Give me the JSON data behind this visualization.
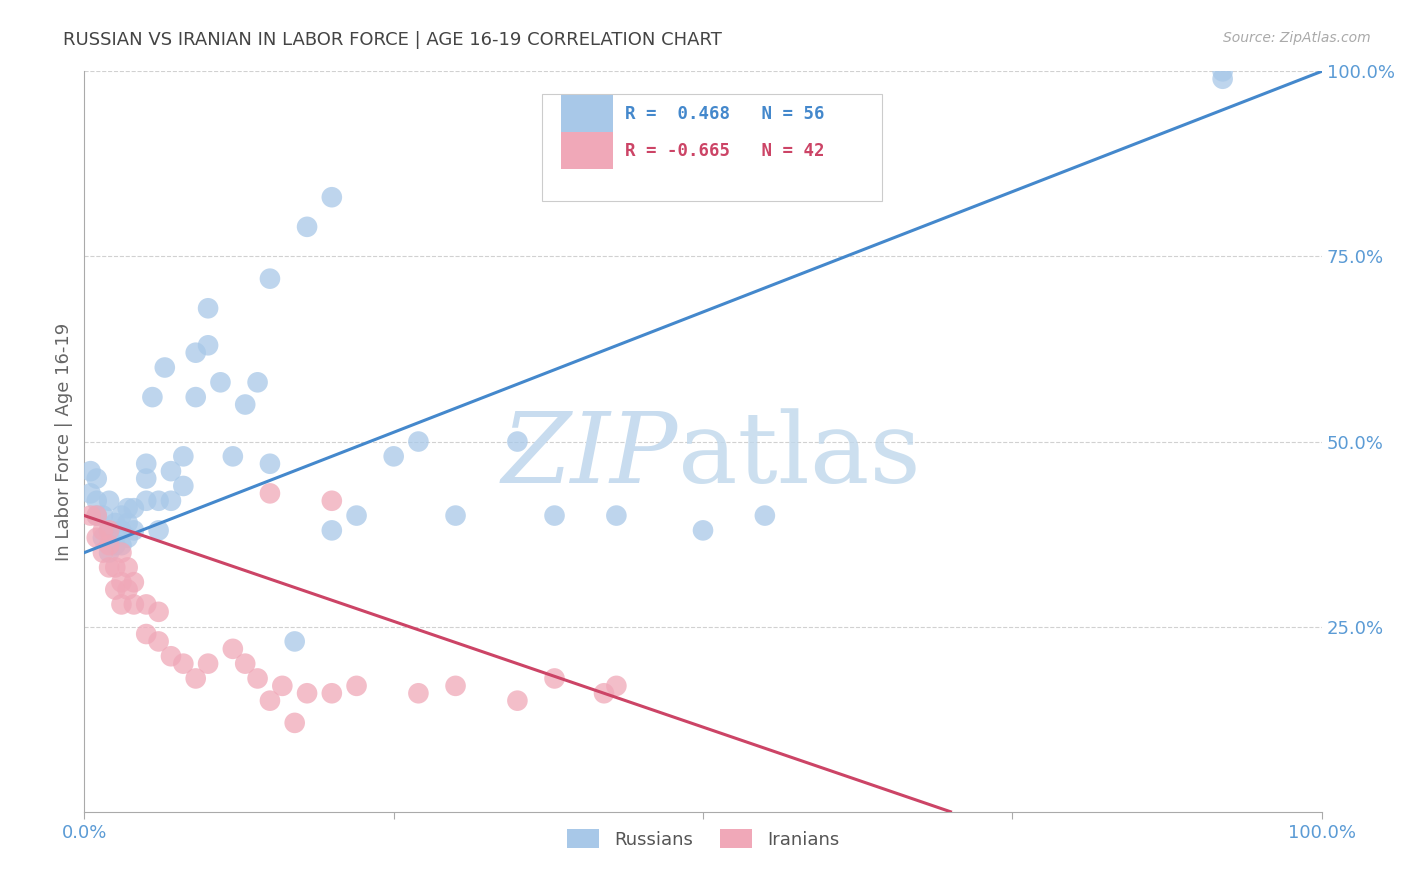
{
  "title": "RUSSIAN VS IRANIAN IN LABOR FORCE | AGE 16-19 CORRELATION CHART",
  "source": "Source: ZipAtlas.com",
  "ylabel": "In Labor Force | Age 16-19",
  "ytick_labels": [
    "",
    "25.0%",
    "50.0%",
    "75.0%",
    "100.0%"
  ],
  "ytick_values": [
    0.0,
    0.25,
    0.5,
    0.75,
    1.0
  ],
  "xtick_labels": [
    "0.0%",
    "",
    "",
    "",
    "100.0%"
  ],
  "xtick_values": [
    0.0,
    0.25,
    0.5,
    0.75,
    1.0
  ],
  "watermark_zip": "ZIP",
  "watermark_atlas": "atlas",
  "legend_russian_R": "R =  0.468",
  "legend_russian_N": "N = 56",
  "legend_iranian_R": "R = -0.665",
  "legend_iranian_N": "N = 42",
  "russian_color": "#A8C8E8",
  "iranian_color": "#F0A8B8",
  "russian_line_color": "#4488CC",
  "iranian_line_color": "#CC4466",
  "background_color": "#FFFFFF",
  "grid_color": "#CCCCCC",
  "title_color": "#444444",
  "axis_label_color": "#5B9BD5",
  "russian_scatter_x": [
    0.005,
    0.005,
    0.01,
    0.01,
    0.01,
    0.015,
    0.015,
    0.02,
    0.02,
    0.02,
    0.025,
    0.025,
    0.03,
    0.03,
    0.03,
    0.035,
    0.035,
    0.035,
    0.04,
    0.04,
    0.05,
    0.05,
    0.05,
    0.055,
    0.06,
    0.06,
    0.065,
    0.07,
    0.07,
    0.08,
    0.08,
    0.09,
    0.09,
    0.1,
    0.1,
    0.11,
    0.12,
    0.13,
    0.14,
    0.15,
    0.17,
    0.2,
    0.22,
    0.25,
    0.27,
    0.3,
    0.35,
    0.38,
    0.43,
    0.5,
    0.55,
    0.15,
    0.18,
    0.2,
    0.92,
    0.92
  ],
  "russian_scatter_y": [
    0.43,
    0.46,
    0.4,
    0.42,
    0.45,
    0.37,
    0.4,
    0.35,
    0.38,
    0.42,
    0.36,
    0.39,
    0.36,
    0.38,
    0.4,
    0.37,
    0.39,
    0.41,
    0.38,
    0.41,
    0.42,
    0.45,
    0.47,
    0.56,
    0.38,
    0.42,
    0.6,
    0.42,
    0.46,
    0.44,
    0.48,
    0.56,
    0.62,
    0.63,
    0.68,
    0.58,
    0.48,
    0.55,
    0.58,
    0.47,
    0.23,
    0.38,
    0.4,
    0.48,
    0.5,
    0.4,
    0.5,
    0.4,
    0.4,
    0.38,
    0.4,
    0.72,
    0.79,
    0.83,
    0.99,
    1.0
  ],
  "iranian_scatter_x": [
    0.005,
    0.01,
    0.01,
    0.015,
    0.015,
    0.02,
    0.02,
    0.02,
    0.025,
    0.025,
    0.03,
    0.03,
    0.03,
    0.035,
    0.035,
    0.04,
    0.04,
    0.05,
    0.05,
    0.06,
    0.06,
    0.07,
    0.08,
    0.09,
    0.1,
    0.12,
    0.13,
    0.14,
    0.15,
    0.16,
    0.17,
    0.18,
    0.2,
    0.22,
    0.27,
    0.3,
    0.35,
    0.38,
    0.42,
    0.43,
    0.15,
    0.2
  ],
  "iranian_scatter_y": [
    0.4,
    0.37,
    0.4,
    0.35,
    0.38,
    0.33,
    0.36,
    0.38,
    0.3,
    0.33,
    0.28,
    0.31,
    0.35,
    0.3,
    0.33,
    0.28,
    0.31,
    0.24,
    0.28,
    0.23,
    0.27,
    0.21,
    0.2,
    0.18,
    0.2,
    0.22,
    0.2,
    0.18,
    0.15,
    0.17,
    0.12,
    0.16,
    0.16,
    0.17,
    0.16,
    0.17,
    0.15,
    0.18,
    0.16,
    0.17,
    0.43,
    0.42
  ],
  "russian_line_x": [
    0.0,
    1.0
  ],
  "russian_line_y": [
    0.35,
    1.0
  ],
  "iranian_line_x": [
    0.0,
    0.7
  ],
  "iranian_line_y": [
    0.4,
    0.0
  ]
}
